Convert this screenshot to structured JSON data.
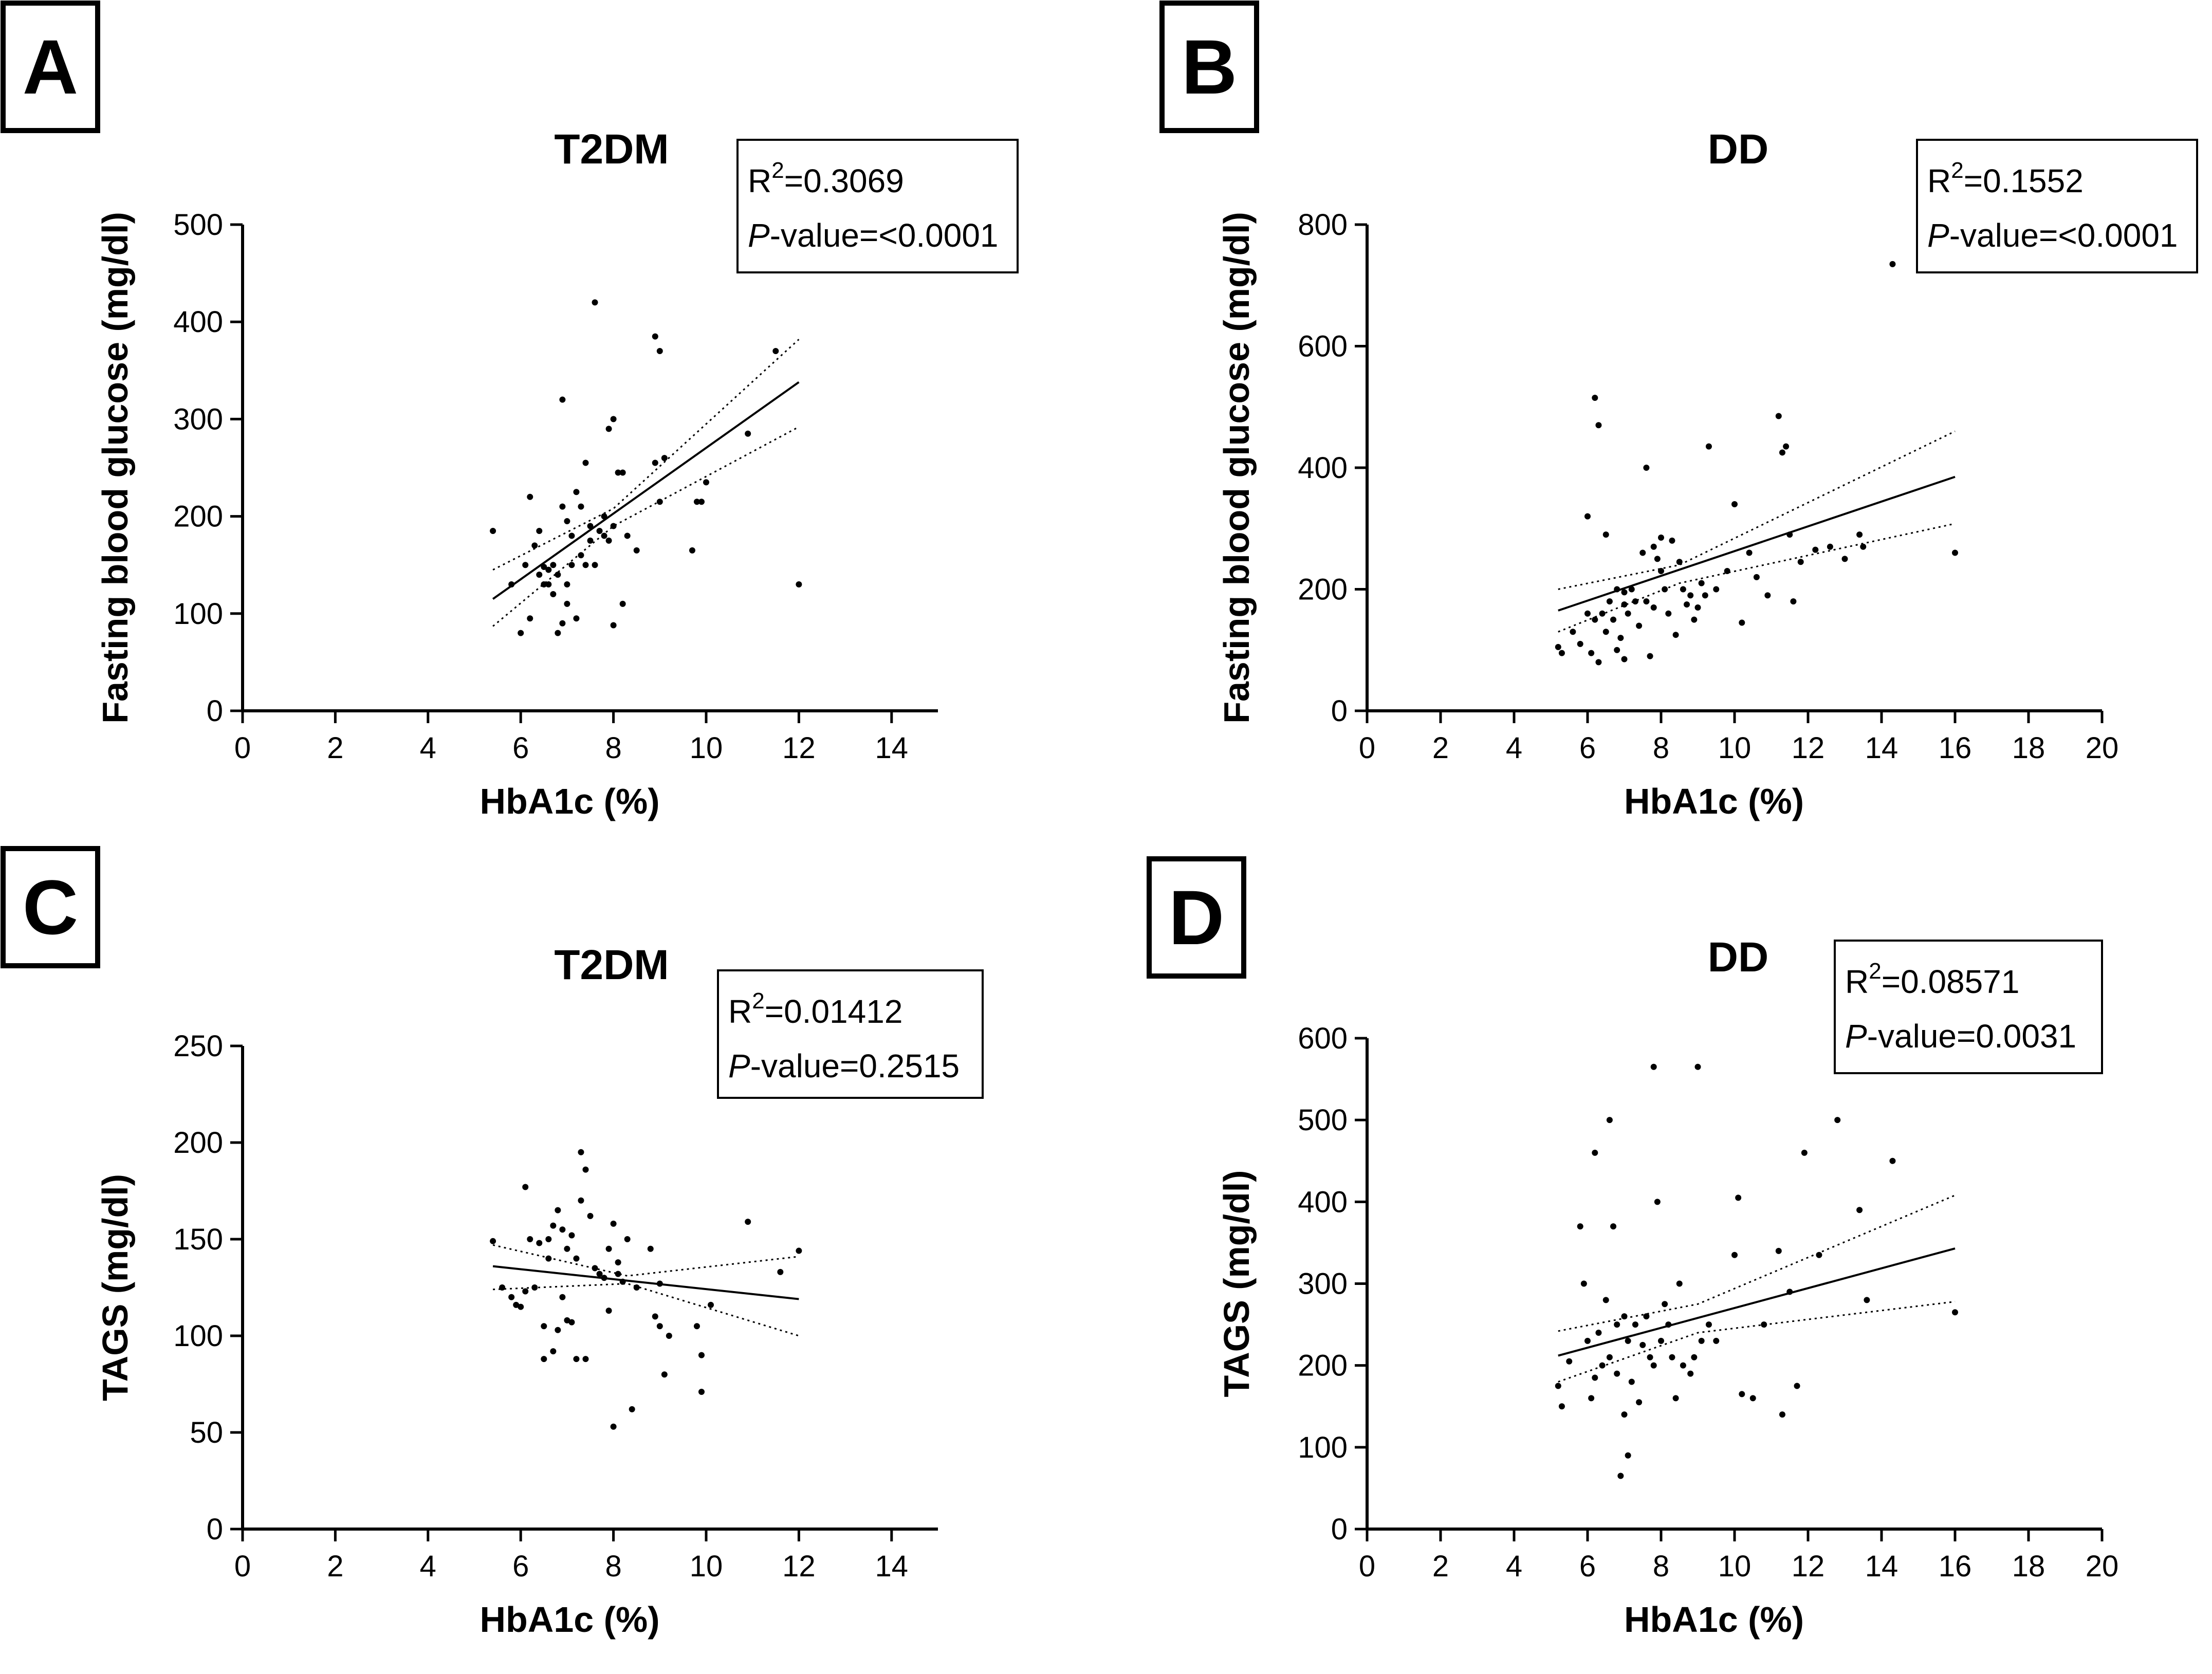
{
  "chart_data": [
    {
      "panel": "A",
      "type": "scatter",
      "title": "T2DM",
      "xlabel": "HbA1c (%)",
      "ylabel": "Fasting blood glucose (mg/dl)",
      "xlim": [
        0,
        15
      ],
      "ylim": [
        0,
        500
      ],
      "xticks": [
        "0",
        "2",
        "4",
        "6",
        "8",
        "10",
        "12",
        "14"
      ],
      "yticks": [
        "0",
        "100",
        "200",
        "300",
        "400",
        "500"
      ],
      "r2_prefix": "R",
      "r2_sup": "2",
      "r2_value": "=0.3069",
      "p_prefix": "P",
      "p_value": "-value=<0.0001",
      "fit": {
        "x": [
          5.4,
          12.0
        ],
        "y": [
          115,
          338
        ]
      },
      "ci_upper": {
        "x": [
          5.4,
          8.0,
          12.0
        ],
        "y": [
          145,
          208,
          382
        ]
      },
      "ci_lower": {
        "x": [
          5.4,
          8.0,
          12.0
        ],
        "y": [
          87,
          190,
          292
        ]
      },
      "points": [
        [
          5.4,
          185
        ],
        [
          5.8,
          130
        ],
        [
          6.0,
          80
        ],
        [
          6.1,
          150
        ],
        [
          6.2,
          220
        ],
        [
          6.2,
          95
        ],
        [
          6.3,
          170
        ],
        [
          6.4,
          185
        ],
        [
          6.4,
          140
        ],
        [
          6.5,
          130
        ],
        [
          6.5,
          148
        ],
        [
          6.6,
          145
        ],
        [
          6.6,
          130
        ],
        [
          6.7,
          150
        ],
        [
          6.7,
          120
        ],
        [
          6.8,
          80
        ],
        [
          6.8,
          140
        ],
        [
          6.9,
          210
        ],
        [
          6.9,
          320
        ],
        [
          6.9,
          90
        ],
        [
          7.0,
          195
        ],
        [
          7.0,
          130
        ],
        [
          7.0,
          110
        ],
        [
          7.1,
          150
        ],
        [
          7.1,
          180
        ],
        [
          7.2,
          225
        ],
        [
          7.2,
          95
        ],
        [
          7.3,
          210
        ],
        [
          7.3,
          160
        ],
        [
          7.4,
          255
        ],
        [
          7.4,
          150
        ],
        [
          7.5,
          190
        ],
        [
          7.5,
          175
        ],
        [
          7.6,
          420
        ],
        [
          7.6,
          150
        ],
        [
          7.7,
          185
        ],
        [
          7.8,
          200
        ],
        [
          7.8,
          180
        ],
        [
          7.9,
          290
        ],
        [
          7.9,
          175
        ],
        [
          8.0,
          300
        ],
        [
          8.0,
          190
        ],
        [
          8.0,
          88
        ],
        [
          8.1,
          245
        ],
        [
          8.2,
          110
        ],
        [
          8.2,
          245
        ],
        [
          8.3,
          180
        ],
        [
          8.5,
          165
        ],
        [
          8.9,
          385
        ],
        [
          8.9,
          255
        ],
        [
          9.0,
          370
        ],
        [
          9.0,
          215
        ],
        [
          9.1,
          260
        ],
        [
          9.7,
          165
        ],
        [
          9.8,
          215
        ],
        [
          9.9,
          215
        ],
        [
          10.0,
          235
        ],
        [
          10.9,
          285
        ],
        [
          11.5,
          370
        ],
        [
          12.0,
          130
        ]
      ]
    },
    {
      "panel": "B",
      "type": "scatter",
      "title": "DD",
      "xlabel": "HbA1c (%)",
      "ylabel": "Fasting blood glucose (mg/dl)",
      "xlim": [
        0,
        20
      ],
      "ylim": [
        0,
        800
      ],
      "xticks": [
        "0",
        "2",
        "4",
        "6",
        "8",
        "10",
        "12",
        "14",
        "16",
        "18",
        "20"
      ],
      "yticks": [
        "0",
        "200",
        "400",
        "600",
        "800"
      ],
      "r2_prefix": "R",
      "r2_sup": "2",
      "r2_value": "=0.1552",
      "p_prefix": "P",
      "p_value": "-value=<0.0001",
      "fit": {
        "x": [
          5.2,
          16.0
        ],
        "y": [
          165,
          385
        ]
      },
      "ci_upper": {
        "x": [
          5.2,
          8.5,
          16.0
        ],
        "y": [
          200,
          240,
          460
        ]
      },
      "ci_lower": {
        "x": [
          5.2,
          8.5,
          16.0
        ],
        "y": [
          130,
          210,
          308
        ]
      },
      "points": [
        [
          5.2,
          105
        ],
        [
          5.3,
          95
        ],
        [
          5.6,
          130
        ],
        [
          5.8,
          110
        ],
        [
          6.0,
          320
        ],
        [
          6.0,
          160
        ],
        [
          6.1,
          95
        ],
        [
          6.2,
          515
        ],
        [
          6.2,
          150
        ],
        [
          6.3,
          470
        ],
        [
          6.3,
          80
        ],
        [
          6.4,
          160
        ],
        [
          6.5,
          290
        ],
        [
          6.5,
          130
        ],
        [
          6.6,
          180
        ],
        [
          6.7,
          150
        ],
        [
          6.8,
          200
        ],
        [
          6.8,
          100
        ],
        [
          6.9,
          120
        ],
        [
          7.0,
          195
        ],
        [
          7.0,
          175
        ],
        [
          7.0,
          85
        ],
        [
          7.1,
          160
        ],
        [
          7.2,
          200
        ],
        [
          7.3,
          180
        ],
        [
          7.4,
          140
        ],
        [
          7.5,
          260
        ],
        [
          7.6,
          400
        ],
        [
          7.6,
          180
        ],
        [
          7.7,
          90
        ],
        [
          7.8,
          270
        ],
        [
          7.8,
          170
        ],
        [
          7.9,
          250
        ],
        [
          8.0,
          285
        ],
        [
          8.0,
          230
        ],
        [
          8.1,
          200
        ],
        [
          8.2,
          160
        ],
        [
          8.3,
          280
        ],
        [
          8.4,
          125
        ],
        [
          8.5,
          245
        ],
        [
          8.6,
          200
        ],
        [
          8.7,
          175
        ],
        [
          8.8,
          190
        ],
        [
          8.9,
          150
        ],
        [
          9.0,
          170
        ],
        [
          9.1,
          210
        ],
        [
          9.2,
          190
        ],
        [
          9.3,
          435
        ],
        [
          9.5,
          200
        ],
        [
          9.8,
          230
        ],
        [
          10.0,
          340
        ],
        [
          10.2,
          145
        ],
        [
          10.4,
          260
        ],
        [
          10.6,
          220
        ],
        [
          10.9,
          190
        ],
        [
          11.2,
          485
        ],
        [
          11.3,
          425
        ],
        [
          11.4,
          435
        ],
        [
          11.5,
          290
        ],
        [
          11.6,
          180
        ],
        [
          11.8,
          245
        ],
        [
          12.2,
          265
        ],
        [
          12.6,
          270
        ],
        [
          13.0,
          250
        ],
        [
          13.4,
          290
        ],
        [
          13.5,
          270
        ],
        [
          14.3,
          735
        ],
        [
          16.0,
          260
        ]
      ]
    },
    {
      "panel": "C",
      "type": "scatter",
      "title": "T2DM",
      "xlabel": "HbA1c (%)",
      "ylabel": "TAGS (mg/dl)",
      "xlim": [
        0,
        15
      ],
      "ylim": [
        0,
        250
      ],
      "xticks": [
        "0",
        "2",
        "4",
        "6",
        "8",
        "10",
        "12",
        "14"
      ],
      "yticks": [
        "0",
        "50",
        "100",
        "150",
        "200",
        "250"
      ],
      "r2_prefix": "R",
      "r2_sup": "2",
      "r2_value": "=0.01412",
      "p_prefix": "P",
      "p_value": "-value=0.2515",
      "fit": {
        "x": [
          5.4,
          12.0
        ],
        "y": [
          136,
          119
        ]
      },
      "ci_upper": {
        "x": [
          5.4,
          8.3,
          12.0
        ],
        "y": [
          147,
          131,
          141
        ]
      },
      "ci_lower": {
        "x": [
          5.4,
          8.3,
          12.0
        ],
        "y": [
          124,
          127,
          100
        ]
      },
      "points": [
        [
          5.4,
          149
        ],
        [
          5.6,
          125
        ],
        [
          5.8,
          120
        ],
        [
          5.9,
          116
        ],
        [
          6.0,
          115
        ],
        [
          6.1,
          177
        ],
        [
          6.1,
          123
        ],
        [
          6.2,
          150
        ],
        [
          6.3,
          125
        ],
        [
          6.4,
          148
        ],
        [
          6.5,
          88
        ],
        [
          6.5,
          105
        ],
        [
          6.6,
          150
        ],
        [
          6.6,
          140
        ],
        [
          6.7,
          157
        ],
        [
          6.7,
          92
        ],
        [
          6.8,
          165
        ],
        [
          6.8,
          103
        ],
        [
          6.9,
          155
        ],
        [
          6.9,
          120
        ],
        [
          7.0,
          108
        ],
        [
          7.0,
          145
        ],
        [
          7.1,
          107
        ],
        [
          7.1,
          152
        ],
        [
          7.2,
          140
        ],
        [
          7.2,
          88
        ],
        [
          7.3,
          195
        ],
        [
          7.3,
          170
        ],
        [
          7.4,
          186
        ],
        [
          7.4,
          88
        ],
        [
          7.5,
          162
        ],
        [
          7.6,
          135
        ],
        [
          7.7,
          132
        ],
        [
          7.8,
          130
        ],
        [
          7.9,
          113
        ],
        [
          7.9,
          145
        ],
        [
          8.0,
          53
        ],
        [
          8.0,
          158
        ],
        [
          8.1,
          138
        ],
        [
          8.1,
          132
        ],
        [
          8.2,
          128
        ],
        [
          8.3,
          150
        ],
        [
          8.4,
          62
        ],
        [
          8.5,
          125
        ],
        [
          8.8,
          145
        ],
        [
          8.9,
          110
        ],
        [
          9.0,
          105
        ],
        [
          9.0,
          127
        ],
        [
          9.1,
          80
        ],
        [
          9.2,
          100
        ],
        [
          9.8,
          105
        ],
        [
          9.9,
          90
        ],
        [
          9.9,
          71
        ],
        [
          10.1,
          116
        ],
        [
          10.9,
          159
        ],
        [
          11.6,
          133
        ],
        [
          12.0,
          144
        ]
      ]
    },
    {
      "panel": "D",
      "type": "scatter",
      "title": "DD",
      "xlabel": "HbA1c (%)",
      "ylabel": "TAGS (mg/dl)",
      "xlim": [
        0,
        20
      ],
      "ylim": [
        0,
        600
      ],
      "xticks": [
        "0",
        "2",
        "4",
        "6",
        "8",
        "10",
        "12",
        "14",
        "16",
        "18",
        "20"
      ],
      "yticks": [
        "0",
        "100",
        "200",
        "300",
        "400",
        "500",
        "600"
      ],
      "r2_prefix": "R",
      "r2_sup": "2",
      "r2_value": "=0.08571",
      "p_prefix": "P",
      "p_value": "-value=0.0031",
      "fit": {
        "x": [
          5.2,
          16.0
        ],
        "y": [
          212,
          343
        ]
      },
      "ci_upper": {
        "x": [
          5.2,
          9.0,
          16.0
        ],
        "y": [
          242,
          275,
          408
        ]
      },
      "ci_lower": {
        "x": [
          5.2,
          9.0,
          16.0
        ],
        "y": [
          180,
          240,
          278
        ]
      },
      "points": [
        [
          5.2,
          175
        ],
        [
          5.3,
          150
        ],
        [
          5.5,
          205
        ],
        [
          5.8,
          370
        ],
        [
          5.9,
          300
        ],
        [
          6.0,
          230
        ],
        [
          6.1,
          160
        ],
        [
          6.2,
          460
        ],
        [
          6.2,
          185
        ],
        [
          6.3,
          240
        ],
        [
          6.4,
          200
        ],
        [
          6.5,
          280
        ],
        [
          6.6,
          500
        ],
        [
          6.6,
          210
        ],
        [
          6.7,
          370
        ],
        [
          6.8,
          250
        ],
        [
          6.8,
          190
        ],
        [
          6.9,
          65
        ],
        [
          7.0,
          260
        ],
        [
          7.0,
          140
        ],
        [
          7.1,
          90
        ],
        [
          7.1,
          230
        ],
        [
          7.2,
          180
        ],
        [
          7.3,
          250
        ],
        [
          7.4,
          155
        ],
        [
          7.5,
          225
        ],
        [
          7.6,
          260
        ],
        [
          7.7,
          210
        ],
        [
          7.8,
          565
        ],
        [
          7.8,
          200
        ],
        [
          7.9,
          400
        ],
        [
          8.0,
          230
        ],
        [
          8.1,
          275
        ],
        [
          8.2,
          250
        ],
        [
          8.3,
          210
        ],
        [
          8.4,
          160
        ],
        [
          8.5,
          300
        ],
        [
          8.6,
          200
        ],
        [
          8.8,
          190
        ],
        [
          8.9,
          210
        ],
        [
          9.0,
          565
        ],
        [
          9.1,
          230
        ],
        [
          9.3,
          250
        ],
        [
          9.5,
          230
        ],
        [
          10.0,
          335
        ],
        [
          10.1,
          405
        ],
        [
          10.2,
          165
        ],
        [
          10.5,
          160
        ],
        [
          10.8,
          250
        ],
        [
          11.2,
          340
        ],
        [
          11.3,
          140
        ],
        [
          11.5,
          290
        ],
        [
          11.7,
          175
        ],
        [
          11.9,
          460
        ],
        [
          12.3,
          335
        ],
        [
          12.8,
          500
        ],
        [
          13.4,
          390
        ],
        [
          13.6,
          280
        ],
        [
          14.3,
          450
        ],
        [
          16.0,
          265
        ]
      ]
    }
  ]
}
